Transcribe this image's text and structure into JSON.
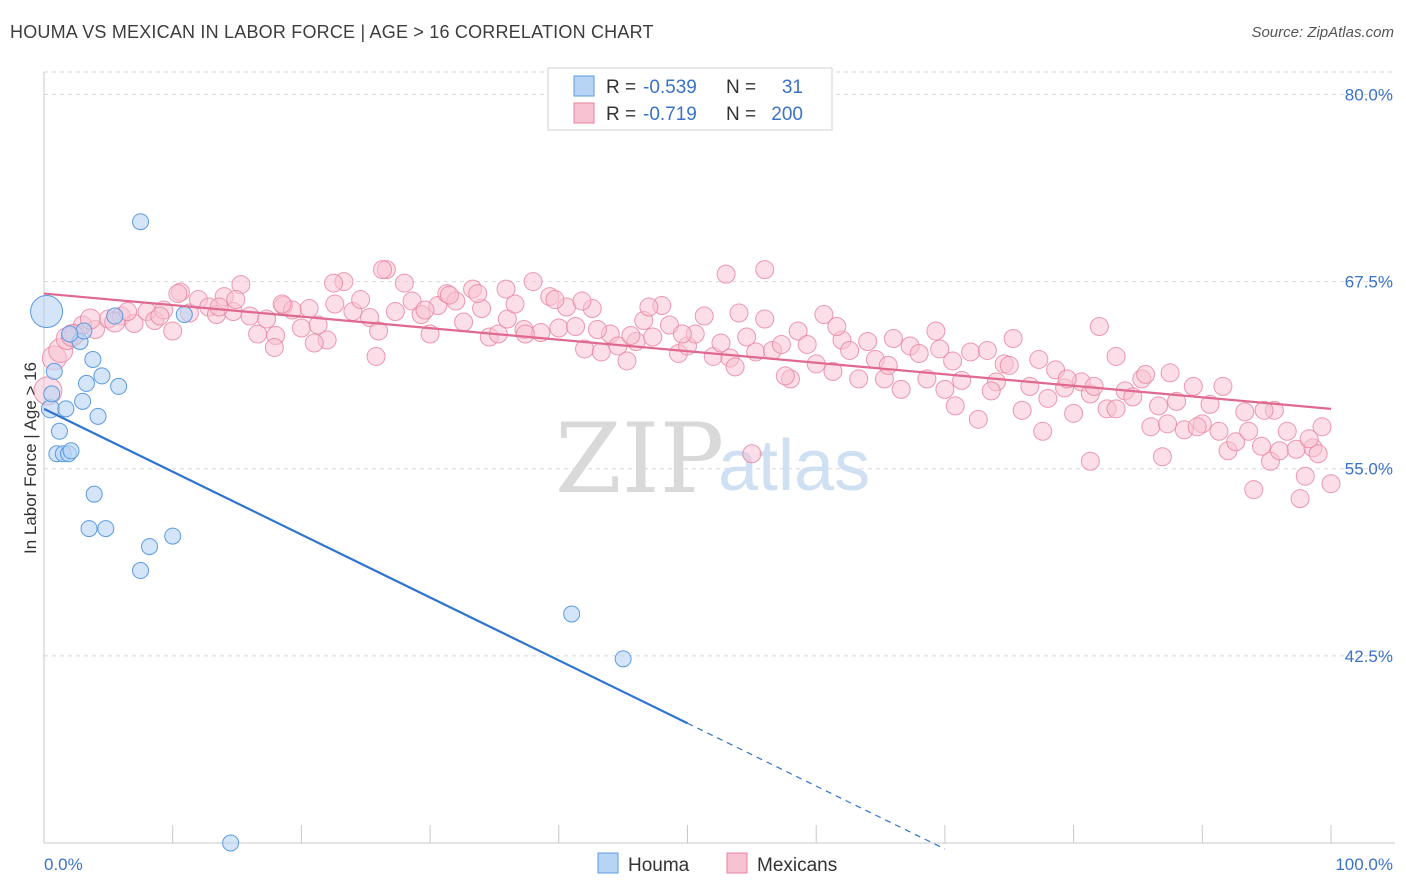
{
  "title": "HOUMA VS MEXICAN IN LABOR FORCE | AGE > 16 CORRELATION CHART",
  "source": "Source: ZipAtlas.com",
  "colors": {
    "houma": "#5b9be0",
    "houma_fill": "#b8d4f5",
    "houma_line": "#2f74d0",
    "mexicans": "#e8819f",
    "mexicans_fill": "#f7c3d3",
    "mexicans_line": "#e0698f",
    "tick_label": "#3a72c8",
    "grid": "#d8d8d8"
  },
  "legend": {
    "rows": [
      {
        "r_label": "R =",
        "r_value": "-0.539",
        "n_label": "N =",
        "n_value": "31"
      },
      {
        "r_label": "R =",
        "r_value": "-0.719",
        "n_label": "N =",
        "n_value": "200"
      }
    ]
  },
  "bottom_legend": [
    "Houma",
    "Mexicans"
  ],
  "chart_data": {
    "type": "scatter",
    "title": "HOUMA VS MEXICAN IN LABOR FORCE | AGE > 16 CORRELATION CHART",
    "xlabel": "",
    "ylabel": "In Labor Force | Age > 16",
    "x_tick_labels": [
      "0.0%",
      "100.0%"
    ],
    "y_tick_labels": [
      "80.0%",
      "67.5%",
      "55.0%",
      "42.5%"
    ],
    "y_ticks": [
      80.0,
      67.5,
      55.0,
      42.5
    ],
    "xlim": [
      0,
      100
    ],
    "ylim": [
      30.0,
      81.5
    ],
    "grid": true,
    "legend_position": "top-center",
    "watermark": {
      "a": "ZIP",
      "b": "atlas"
    },
    "series": [
      {
        "name": "Houma",
        "R": -0.539,
        "N": 31,
        "trend": {
          "x0": 0,
          "y0": 59.0,
          "x1": 50,
          "y1": 38.0,
          "dash_to_x": 70,
          "dash_to_y": 29.6
        },
        "points": [
          [
            0.2,
            65.5,
            16
          ],
          [
            0.5,
            59.0,
            9
          ],
          [
            0.6,
            60.0,
            8
          ],
          [
            0.8,
            61.5,
            8
          ],
          [
            1.0,
            56.0,
            8
          ],
          [
            1.2,
            57.5,
            8
          ],
          [
            1.5,
            56.0,
            8
          ],
          [
            1.7,
            59.0,
            8
          ],
          [
            1.9,
            56.0,
            8
          ],
          [
            2.1,
            56.2,
            8
          ],
          [
            2.8,
            63.5,
            8
          ],
          [
            3.1,
            64.2,
            8
          ],
          [
            3.3,
            60.7,
            8
          ],
          [
            3.0,
            59.5,
            8
          ],
          [
            3.5,
            51.0,
            8
          ],
          [
            3.8,
            62.3,
            8
          ],
          [
            3.9,
            53.3,
            8
          ],
          [
            4.2,
            58.5,
            8
          ],
          [
            4.5,
            61.2,
            8
          ],
          [
            4.8,
            51.0,
            8
          ],
          [
            5.5,
            65.2,
            8
          ],
          [
            5.8,
            60.5,
            8
          ],
          [
            7.5,
            71.5,
            8
          ],
          [
            7.5,
            48.2,
            8
          ],
          [
            8.2,
            49.8,
            8
          ],
          [
            10.0,
            50.5,
            8
          ],
          [
            10.9,
            65.3,
            8
          ],
          [
            14.5,
            30.0,
            8
          ],
          [
            41.0,
            45.3,
            8
          ],
          [
            45.0,
            42.3,
            8
          ],
          [
            2.0,
            64.0,
            8
          ]
        ]
      },
      {
        "name": "Mexicans",
        "R": -0.719,
        "N": 200,
        "trend": {
          "x0": 0,
          "y0": 66.7,
          "x1": 100,
          "y1": 59.0
        },
        "points": [
          [
            0.3,
            60.2,
            14
          ],
          [
            0.8,
            62.4,
            12
          ],
          [
            1.3,
            62.9,
            12
          ],
          [
            1.8,
            63.7,
            11
          ],
          [
            2.4,
            64.0,
            10
          ],
          [
            3.0,
            64.6,
            9
          ],
          [
            4.0,
            64.3,
            9
          ],
          [
            5.0,
            65.0,
            9
          ],
          [
            6.0,
            65.2,
            9
          ],
          [
            7.0,
            64.7,
            9
          ],
          [
            8.0,
            65.5,
            9
          ],
          [
            8.6,
            64.9,
            9
          ],
          [
            9.3,
            65.6,
            9
          ],
          [
            10.0,
            64.2,
            9
          ],
          [
            10.6,
            66.8,
            9
          ],
          [
            11.3,
            65.4,
            9
          ],
          [
            12.0,
            66.3,
            9
          ],
          [
            12.8,
            65.8,
            9
          ],
          [
            13.4,
            65.3,
            9
          ],
          [
            14.0,
            66.5,
            9
          ],
          [
            14.7,
            65.5,
            9
          ],
          [
            15.3,
            67.3,
            9
          ],
          [
            16.0,
            65.2,
            9
          ],
          [
            16.6,
            64.0,
            9
          ],
          [
            17.3,
            65.0,
            9
          ],
          [
            18.0,
            63.9,
            9
          ],
          [
            18.6,
            65.9,
            9
          ],
          [
            19.3,
            65.6,
            9
          ],
          [
            20.0,
            64.4,
            9
          ],
          [
            20.6,
            65.7,
            9
          ],
          [
            21.3,
            64.6,
            9
          ],
          [
            22.0,
            63.6,
            9
          ],
          [
            22.6,
            66.0,
            9
          ],
          [
            23.3,
            67.5,
            9
          ],
          [
            24.0,
            65.5,
            9
          ],
          [
            24.6,
            66.3,
            9
          ],
          [
            25.3,
            65.1,
            9
          ],
          [
            26.0,
            64.2,
            9
          ],
          [
            26.6,
            68.3,
            9
          ],
          [
            27.3,
            65.5,
            9
          ],
          [
            28.0,
            67.4,
            9
          ],
          [
            28.6,
            66.2,
            9
          ],
          [
            29.3,
            65.3,
            9
          ],
          [
            30.0,
            64.0,
            9
          ],
          [
            30.6,
            65.9,
            9
          ],
          [
            31.3,
            66.7,
            9
          ],
          [
            32.0,
            66.2,
            9
          ],
          [
            32.6,
            64.8,
            9
          ],
          [
            33.3,
            67.0,
            9
          ],
          [
            34.0,
            65.7,
            9
          ],
          [
            34.6,
            63.8,
            9
          ],
          [
            35.3,
            64.0,
            9
          ],
          [
            36.0,
            65.0,
            9
          ],
          [
            36.6,
            66.0,
            9
          ],
          [
            37.3,
            64.3,
            9
          ],
          [
            38.0,
            67.5,
            9
          ],
          [
            38.6,
            64.1,
            9
          ],
          [
            39.3,
            66.5,
            9
          ],
          [
            40.0,
            64.4,
            9
          ],
          [
            40.6,
            65.8,
            9
          ],
          [
            41.3,
            64.5,
            9
          ],
          [
            42.0,
            63.0,
            9
          ],
          [
            42.6,
            65.7,
            9
          ],
          [
            43.3,
            62.8,
            9
          ],
          [
            44.0,
            64.0,
            9
          ],
          [
            44.6,
            63.2,
            9
          ],
          [
            45.3,
            62.2,
            9
          ],
          [
            46.0,
            63.5,
            9
          ],
          [
            46.6,
            64.9,
            9
          ],
          [
            47.3,
            63.8,
            9
          ],
          [
            48.0,
            65.9,
            9
          ],
          [
            48.6,
            64.6,
            9
          ],
          [
            49.3,
            62.7,
            9
          ],
          [
            50.0,
            63.2,
            9
          ],
          [
            50.6,
            64.0,
            9
          ],
          [
            51.3,
            65.2,
            9
          ],
          [
            52.0,
            62.5,
            9
          ],
          [
            52.6,
            63.4,
            9
          ],
          [
            53.3,
            62.4,
            9
          ],
          [
            54.0,
            65.4,
            9
          ],
          [
            54.6,
            63.8,
            9
          ],
          [
            55.3,
            62.8,
            9
          ],
          [
            56.0,
            65.0,
            9
          ],
          [
            56.6,
            62.9,
            9
          ],
          [
            57.3,
            63.3,
            9
          ],
          [
            58.0,
            61.0,
            9
          ],
          [
            58.6,
            64.2,
            9
          ],
          [
            59.3,
            63.3,
            9
          ],
          [
            60.0,
            62.0,
            9
          ],
          [
            60.6,
            65.3,
            9
          ],
          [
            61.3,
            61.5,
            9
          ],
          [
            62.0,
            63.6,
            9
          ],
          [
            62.6,
            62.9,
            9
          ],
          [
            63.3,
            61.0,
            9
          ],
          [
            64.0,
            63.5,
            9
          ],
          [
            64.6,
            62.3,
            9
          ],
          [
            65.3,
            61.0,
            9
          ],
          [
            66.0,
            63.7,
            9
          ],
          [
            66.6,
            60.3,
            9
          ],
          [
            67.3,
            63.2,
            9
          ],
          [
            68.0,
            62.7,
            9
          ],
          [
            68.6,
            61.0,
            9
          ],
          [
            69.3,
            64.2,
            9
          ],
          [
            70.0,
            60.3,
            9
          ],
          [
            70.6,
            62.2,
            9
          ],
          [
            71.3,
            60.9,
            9
          ],
          [
            72.0,
            62.8,
            9
          ],
          [
            72.6,
            58.3,
            9
          ],
          [
            73.3,
            62.9,
            9
          ],
          [
            74.0,
            60.8,
            9
          ],
          [
            74.6,
            62.0,
            9
          ],
          [
            75.3,
            63.7,
            9
          ],
          [
            76.0,
            58.9,
            9
          ],
          [
            76.6,
            60.5,
            9
          ],
          [
            77.3,
            62.3,
            9
          ],
          [
            78.0,
            59.7,
            9
          ],
          [
            78.6,
            61.6,
            9
          ],
          [
            79.3,
            60.4,
            9
          ],
          [
            80.0,
            58.7,
            9
          ],
          [
            80.6,
            60.8,
            9
          ],
          [
            81.3,
            60.0,
            9
          ],
          [
            82.0,
            64.5,
            9
          ],
          [
            82.6,
            59.0,
            9
          ],
          [
            83.3,
            62.5,
            9
          ],
          [
            84.0,
            60.2,
            9
          ],
          [
            84.6,
            59.8,
            9
          ],
          [
            85.3,
            61.0,
            9
          ],
          [
            86.0,
            57.8,
            9
          ],
          [
            86.6,
            59.2,
            9
          ],
          [
            87.3,
            58.0,
            9
          ],
          [
            88.0,
            59.5,
            9
          ],
          [
            88.6,
            57.6,
            9
          ],
          [
            89.3,
            60.5,
            9
          ],
          [
            90.0,
            58.0,
            9
          ],
          [
            90.6,
            59.3,
            9
          ],
          [
            91.3,
            57.5,
            9
          ],
          [
            92.0,
            56.2,
            9
          ],
          [
            92.6,
            56.8,
            9
          ],
          [
            93.3,
            58.8,
            9
          ],
          [
            94.0,
            53.6,
            9
          ],
          [
            94.6,
            56.5,
            9
          ],
          [
            95.3,
            55.5,
            9
          ],
          [
            96.0,
            56.2,
            9
          ],
          [
            96.6,
            57.5,
            9
          ],
          [
            97.3,
            56.3,
            9
          ],
          [
            98.0,
            54.5,
            9
          ],
          [
            98.6,
            56.4,
            9
          ],
          [
            99.3,
            57.8,
            9
          ],
          [
            100.0,
            54.0,
            9
          ],
          [
            2.2,
            63.9,
            11
          ],
          [
            3.6,
            65.0,
            10
          ],
          [
            5.5,
            64.8,
            10
          ],
          [
            6.5,
            65.5,
            9
          ],
          [
            9.0,
            65.2,
            9
          ],
          [
            13.6,
            65.8,
            9
          ],
          [
            17.9,
            63.1,
            9
          ],
          [
            21.0,
            63.4,
            9
          ],
          [
            25.8,
            62.5,
            9
          ],
          [
            29.6,
            65.6,
            9
          ],
          [
            33.7,
            66.7,
            9
          ],
          [
            37.4,
            64.0,
            9
          ],
          [
            41.8,
            66.2,
            9
          ],
          [
            45.6,
            63.9,
            9
          ],
          [
            49.6,
            64.0,
            9
          ],
          [
            53.7,
            61.8,
            9
          ],
          [
            57.6,
            61.2,
            9
          ],
          [
            61.6,
            64.5,
            9
          ],
          [
            65.6,
            61.9,
            9
          ],
          [
            69.6,
            63.0,
            9
          ],
          [
            73.6,
            60.2,
            9
          ],
          [
            77.6,
            57.5,
            9
          ],
          [
            81.6,
            60.5,
            9
          ],
          [
            85.6,
            61.3,
            9
          ],
          [
            89.6,
            57.8,
            9
          ],
          [
            93.6,
            57.5,
            9
          ],
          [
            97.6,
            53.0,
            9
          ],
          [
            99.0,
            56.0,
            9
          ],
          [
            10.4,
            66.7,
            9
          ],
          [
            14.9,
            66.3,
            9
          ],
          [
            18.5,
            66.0,
            9
          ],
          [
            22.5,
            67.4,
            9
          ],
          [
            26.3,
            68.3,
            9
          ],
          [
            31.5,
            66.6,
            9
          ],
          [
            35.9,
            67.0,
            9
          ],
          [
            39.7,
            66.3,
            9
          ],
          [
            43.0,
            64.3,
            9
          ],
          [
            47.0,
            65.8,
            9
          ],
          [
            53.0,
            68.0,
            9
          ],
          [
            56.0,
            68.3,
            9
          ],
          [
            70.8,
            59.2,
            9
          ],
          [
            75.0,
            61.9,
            9
          ],
          [
            79.5,
            61.0,
            9
          ],
          [
            83.3,
            59.0,
            9
          ],
          [
            87.5,
            61.4,
            9
          ],
          [
            91.6,
            60.5,
            9
          ],
          [
            95.6,
            58.9,
            9
          ],
          [
            98.3,
            57.0,
            9
          ],
          [
            55.0,
            56.0,
            9
          ],
          [
            86.9,
            55.8,
            9
          ],
          [
            81.3,
            55.5,
            9
          ],
          [
            94.8,
            58.9,
            9
          ]
        ]
      }
    ]
  }
}
